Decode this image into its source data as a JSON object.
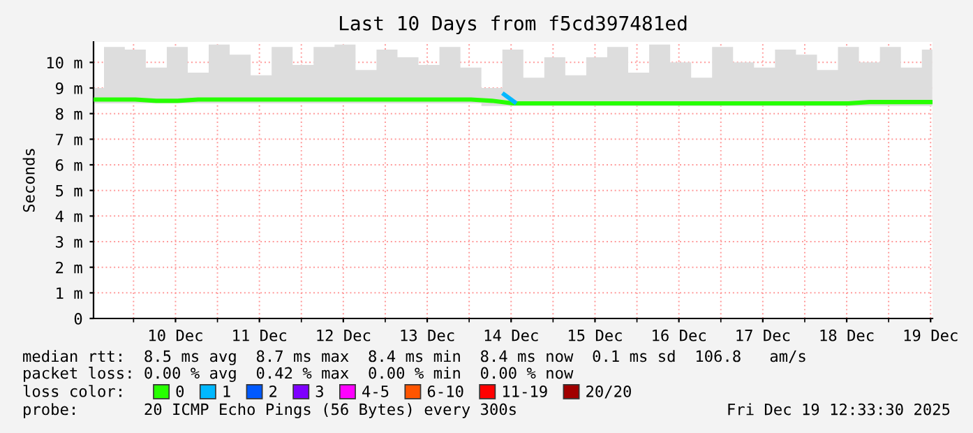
{
  "chart_data": {
    "type": "line",
    "title": "Last 10 Days from f5cd397481ed",
    "ylabel": "Seconds",
    "x": [
      "2025-12-09T12:35",
      "2025-12-09T18:30",
      "2025-12-10T00:30",
      "2025-12-10T06:30",
      "2025-12-10T12:30",
      "2025-12-10T18:30",
      "2025-12-11T00:30",
      "2025-12-11T06:30",
      "2025-12-11T12:30",
      "2025-12-11T18:30",
      "2025-12-12T00:30",
      "2025-12-12T06:30",
      "2025-12-12T12:30",
      "2025-12-12T18:30",
      "2025-12-13T00:30",
      "2025-12-13T06:30",
      "2025-12-13T12:30",
      "2025-12-13T18:30",
      "2025-12-14T00:30",
      "2025-12-14T06:30",
      "2025-12-14T12:30",
      "2025-12-14T18:30",
      "2025-12-15T00:30",
      "2025-12-15T06:30",
      "2025-12-15T12:30",
      "2025-12-15T18:30",
      "2025-12-16T00:30",
      "2025-12-16T06:30",
      "2025-12-16T12:30",
      "2025-12-16T18:30",
      "2025-12-17T00:30",
      "2025-12-17T06:30",
      "2025-12-17T12:30",
      "2025-12-17T18:30",
      "2025-12-18T00:30",
      "2025-12-18T06:30",
      "2025-12-18T12:30",
      "2025-12-18T18:30",
      "2025-12-19T00:30",
      "2025-12-19T06:30",
      "2025-12-19T12:30"
    ],
    "series": [
      {
        "name": "0",
        "color": "#26ff00",
        "values": [
          8.55,
          8.55,
          8.55,
          8.5,
          8.5,
          8.55,
          8.55,
          8.55,
          8.55,
          8.55,
          8.55,
          8.55,
          8.55,
          8.55,
          8.55,
          8.55,
          8.55,
          8.55,
          8.55,
          8.5,
          8.4,
          8.4,
          8.4,
          8.4,
          8.4,
          8.4,
          8.4,
          8.4,
          8.4,
          8.4,
          8.4,
          8.4,
          8.4,
          8.4,
          8.4,
          8.4,
          8.4,
          8.45,
          8.45,
          8.45,
          8.45
        ],
        "lower": [
          8.4,
          8.4,
          8.4,
          8.4,
          8.4,
          8.4,
          8.4,
          8.4,
          8.4,
          8.4,
          8.4,
          8.4,
          8.4,
          8.4,
          8.4,
          8.4,
          8.4,
          8.4,
          8.4,
          8.3,
          8.3,
          8.3,
          8.3,
          8.3,
          8.3,
          8.3,
          8.3,
          8.3,
          8.3,
          8.3,
          8.3,
          8.3,
          8.3,
          8.3,
          8.3,
          8.3,
          8.3,
          8.3,
          8.3,
          8.3,
          8.3
        ],
        "upper": [
          9.0,
          10.6,
          10.5,
          9.8,
          10.6,
          9.6,
          10.7,
          10.3,
          9.5,
          10.6,
          9.9,
          10.6,
          10.7,
          9.7,
          10.5,
          10.2,
          9.9,
          10.6,
          9.8,
          9.0,
          10.5,
          9.4,
          10.2,
          9.5,
          10.2,
          10.6,
          9.6,
          10.7,
          10.0,
          9.4,
          10.6,
          10.0,
          9.8,
          10.5,
          10.3,
          9.7,
          10.6,
          10.0,
          10.6,
          9.8,
          10.5
        ]
      },
      {
        "name": "1",
        "color": "#00b8ff",
        "x": [
          "2025-12-14T10:00",
          "2025-12-14T13:00"
        ],
        "values": [
          8.75,
          8.45
        ]
      },
      {
        "name": "2",
        "color": "#0059ff",
        "values": [
          null,
          null,
          null,
          null,
          null,
          null,
          null,
          null,
          null,
          null,
          null,
          null,
          null,
          null,
          null,
          null,
          null,
          null,
          null,
          null,
          null,
          null,
          null,
          null,
          null,
          null,
          null,
          null,
          null,
          null,
          null,
          null,
          null,
          null,
          null,
          null,
          null,
          null,
          null,
          null,
          null
        ]
      },
      {
        "name": "3",
        "color": "#7e00ff",
        "values": [
          null,
          null,
          null,
          null,
          null,
          null,
          null,
          null,
          null,
          null,
          null,
          null,
          null,
          null,
          null,
          null,
          null,
          null,
          null,
          null,
          null,
          null,
          null,
          null,
          null,
          null,
          null,
          null,
          null,
          null,
          null,
          null,
          null,
          null,
          null,
          null,
          null,
          null,
          null,
          null,
          null
        ]
      },
      {
        "name": "4-5",
        "color": "#ff00ff",
        "values": [
          null,
          null,
          null,
          null,
          null,
          null,
          null,
          null,
          null,
          null,
          null,
          null,
          null,
          null,
          null,
          null,
          null,
          null,
          null,
          null,
          null,
          null,
          null,
          null,
          null,
          null,
          null,
          null,
          null,
          null,
          null,
          null,
          null,
          null,
          null,
          null,
          null,
          null,
          null,
          null,
          null
        ]
      },
      {
        "name": "6-10",
        "color": "#ff5500",
        "values": [
          null,
          null,
          null,
          null,
          null,
          null,
          null,
          null,
          null,
          null,
          null,
          null,
          null,
          null,
          null,
          null,
          null,
          null,
          null,
          null,
          null,
          null,
          null,
          null,
          null,
          null,
          null,
          null,
          null,
          null,
          null,
          null,
          null,
          null,
          null,
          null,
          null,
          null,
          null,
          null,
          null
        ]
      },
      {
        "name": "11-19",
        "color": "#ff0000",
        "values": [
          null,
          null,
          null,
          null,
          null,
          null,
          null,
          null,
          null,
          null,
          null,
          null,
          null,
          null,
          null,
          null,
          null,
          null,
          null,
          null,
          null,
          null,
          null,
          null,
          null,
          null,
          null,
          null,
          null,
          null,
          null,
          null,
          null,
          null,
          null,
          null,
          null,
          null,
          null,
          null,
          null
        ]
      },
      {
        "name": "20/20",
        "color": "#a10000",
        "values": [
          null,
          null,
          null,
          null,
          null,
          null,
          null,
          null,
          null,
          null,
          null,
          null,
          null,
          null,
          null,
          null,
          null,
          null,
          null,
          null,
          null,
          null,
          null,
          null,
          null,
          null,
          null,
          null,
          null,
          null,
          null,
          null,
          null,
          null,
          null,
          null,
          null,
          null,
          null,
          null,
          null
        ]
      }
    ],
    "legend": "bottom",
    "legend_title": "loss color:",
    "xlim": [
      "2025-12-09T12:33",
      "2025-12-19T12:33"
    ],
    "xticks": [
      {
        "value": "2025-12-10T00:00",
        "label": null
      },
      {
        "value": "2025-12-10T12:00",
        "label": "10 Dec"
      },
      {
        "value": "2025-12-11T00:00",
        "label": null
      },
      {
        "value": "2025-12-11T12:00",
        "label": "11 Dec"
      },
      {
        "value": "2025-12-12T00:00",
        "label": null
      },
      {
        "value": "2025-12-12T12:00",
        "label": "12 Dec"
      },
      {
        "value": "2025-12-13T00:00",
        "label": null
      },
      {
        "value": "2025-12-13T12:00",
        "label": "13 Dec"
      },
      {
        "value": "2025-12-14T00:00",
        "label": null
      },
      {
        "value": "2025-12-14T12:00",
        "label": "14 Dec"
      },
      {
        "value": "2025-12-15T00:00",
        "label": null
      },
      {
        "value": "2025-12-15T12:00",
        "label": "15 Dec"
      },
      {
        "value": "2025-12-16T00:00",
        "label": null
      },
      {
        "value": "2025-12-16T12:00",
        "label": "16 Dec"
      },
      {
        "value": "2025-12-17T00:00",
        "label": null
      },
      {
        "value": "2025-12-17T12:00",
        "label": "17 Dec"
      },
      {
        "value": "2025-12-18T00:00",
        "label": null
      },
      {
        "value": "2025-12-18T12:00",
        "label": "18 Dec"
      },
      {
        "value": "2025-12-19T00:00",
        "label": null
      },
      {
        "value": "2025-12-19T12:00",
        "label": "19 Dec"
      }
    ],
    "ylim": [
      0,
      10.8
    ],
    "yticks": [
      0,
      {
        "value": 1,
        "label": "1 m"
      },
      {
        "value": 2,
        "label": "2 m"
      },
      {
        "value": 3,
        "label": "3 m"
      },
      {
        "value": 4,
        "label": "4 m"
      },
      {
        "value": 5,
        "label": "5 m"
      },
      {
        "value": 6,
        "label": "6 m"
      },
      {
        "value": 7,
        "label": "7 m"
      },
      {
        "value": 8,
        "label": "8 m"
      },
      {
        "value": 9,
        "label": "9 m"
      },
      {
        "value": 10,
        "label": "10 m"
      }
    ],
    "grid": true,
    "annotations": [
      "median rtt:  8.5 ms avg  8.7 ms max  8.4 ms min  8.4 ms now  0.1 ms sd  106.8   am/s",
      "packet loss: 0.00 % avg  0.42 % max  0.00 % min  0.00 % now",
      "probe:       20 ICMP Echo Pings (56 Bytes) every 300s",
      "Fri Dec 19 12:33:30 2025"
    ]
  }
}
